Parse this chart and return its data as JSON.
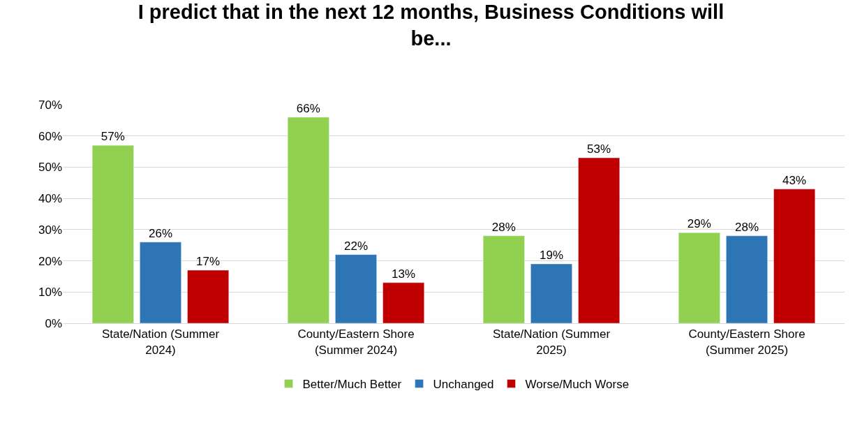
{
  "chart_data": {
    "type": "bar",
    "title": "I predict that in the next 12 months, Business Conditions will be...",
    "categories": [
      "State/Nation (Summer 2024)",
      "County/Eastern Shore (Summer 2024)",
      "State/Nation (Summer 2025)",
      "County/Eastern Shore (Summer 2025)"
    ],
    "series": [
      {
        "name": "Better/Much Better",
        "color": "#92d050",
        "values": [
          57,
          66,
          28,
          29
        ],
        "value_labels": [
          "57%",
          "66%",
          "28%",
          "29%"
        ]
      },
      {
        "name": "Unchanged",
        "color": "#2e75b6",
        "values": [
          26,
          22,
          19,
          28
        ],
        "value_labels": [
          "26%",
          "22%",
          "19%",
          "28%"
        ]
      },
      {
        "name": "Worse/Much Worse",
        "color": "#c00000",
        "values": [
          17,
          13,
          53,
          43
        ],
        "value_labels": [
          "17%",
          "13%",
          "53%",
          "43%"
        ]
      }
    ],
    "ylim": [
      0,
      70
    ],
    "yticks": [
      {
        "value": 0,
        "label": "0%"
      },
      {
        "value": 10,
        "label": "10%"
      },
      {
        "value": 20,
        "label": "20%"
      },
      {
        "value": 30,
        "label": "30%"
      },
      {
        "value": 40,
        "label": "40%"
      },
      {
        "value": 50,
        "label": "50%"
      },
      {
        "value": 60,
        "label": "60%"
      },
      {
        "value": 70,
        "label": "70%"
      }
    ],
    "grid": "y",
    "legend": "bottom"
  }
}
